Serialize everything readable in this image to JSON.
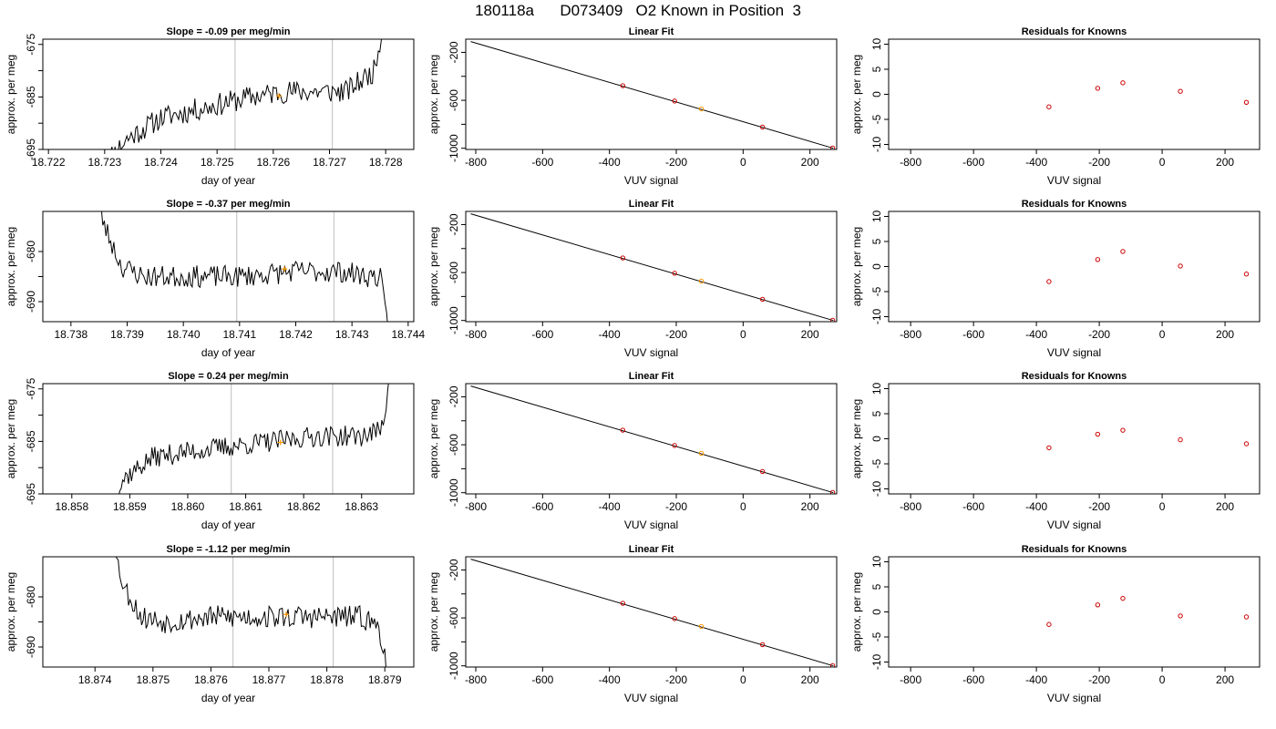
{
  "page": {
    "title": "180118a      D073409   O2 Known in Position  3"
  },
  "chart_data": [
    {
      "type": "line",
      "role": "timeseries",
      "title": "Slope =  -0.09  per meg/min",
      "xlabel": "day of year",
      "ylabel": "approx. per meg",
      "xlim": [
        18.7219,
        18.7285
      ],
      "ylim": [
        -695,
        -674
      ],
      "xticks": [
        18.722,
        18.723,
        18.724,
        18.725,
        18.726,
        18.727,
        18.728
      ],
      "xtick_labels": [
        "18.722",
        "18.723",
        "18.724",
        "18.725",
        "18.726",
        "18.727",
        "18.728"
      ],
      "yticks": [
        -675,
        -685,
        -695
      ],
      "ytick_labels": [
        "-675",
        "-685",
        "-695"
      ],
      "yminor": [
        -680,
        -690
      ],
      "vlines": [
        18.72532,
        18.72705
      ],
      "trace": {
        "start": 18.723,
        "end": 18.728,
        "anchors": [
          [
            18.723,
            -697.5
          ],
          [
            18.7234,
            -693
          ],
          [
            18.724,
            -689
          ],
          [
            18.7248,
            -687
          ],
          [
            18.7256,
            -685
          ],
          [
            18.7262,
            -684
          ],
          [
            18.7268,
            -684
          ],
          [
            18.7273,
            -684
          ],
          [
            18.7278,
            -680
          ],
          [
            18.728,
            -668
          ]
        ],
        "noise": 2.2,
        "seed": 11
      },
      "marker": {
        "x": 18.7261,
        "y": -684.8,
        "color": "#ff9900"
      }
    },
    {
      "type": "scatter",
      "role": "fit",
      "title": "Linear Fit",
      "xlabel": "VUV signal",
      "ylabel": "approx. per meg",
      "xlim": [
        -830,
        280
      ],
      "ylim": [
        -1010,
        -90
      ],
      "xticks": [
        -800,
        -600,
        -400,
        -200,
        0,
        200
      ],
      "xtick_labels": [
        "-800",
        "-600",
        "-400",
        "-200",
        "0",
        "200"
      ],
      "yticks": [
        -200,
        -600,
        -1000
      ],
      "ytick_labels": [
        "-200",
        "-600",
        "-1000"
      ],
      "yminor": [
        -400,
        -800
      ],
      "fit_line": {
        "x1": -815,
        "y1": -110,
        "x2": 270,
        "y2": -1000
      },
      "points": [
        {
          "x": -360,
          "y": -478
        },
        {
          "x": -205,
          "y": -606
        },
        {
          "x": -125,
          "y": -671,
          "color": "#ff9900"
        },
        {
          "x": 58,
          "y": -823
        },
        {
          "x": 268,
          "y": -998
        }
      ]
    },
    {
      "type": "scatter",
      "role": "residuals",
      "title": "Residuals for Knowns",
      "xlabel": "VUV signal",
      "ylabel": "approx. per meg",
      "xlim": [
        -870,
        310
      ],
      "ylim": [
        -11,
        11
      ],
      "xticks": [
        -800,
        -600,
        -400,
        -200,
        0,
        200
      ],
      "xtick_labels": [
        "-800",
        "-600",
        "-400",
        "-200",
        "0",
        "200"
      ],
      "yticks": [
        -10,
        -5,
        0,
        5,
        10
      ],
      "ytick_labels": [
        "-10",
        "-5",
        "0",
        "5",
        "10"
      ],
      "points": [
        {
          "x": -360,
          "y": -2.5
        },
        {
          "x": -205,
          "y": 1.2
        },
        {
          "x": -125,
          "y": 2.3
        },
        {
          "x": 58,
          "y": 0.6
        },
        {
          "x": 268,
          "y": -1.6
        }
      ]
    },
    {
      "type": "line",
      "role": "timeseries",
      "title": "Slope =  -0.37  per meg/min",
      "xlabel": "day of year",
      "ylabel": "approx. per meg",
      "xlim": [
        18.7375,
        18.7441
      ],
      "ylim": [
        -694,
        -672
      ],
      "xticks": [
        18.738,
        18.739,
        18.74,
        18.741,
        18.742,
        18.743,
        18.744
      ],
      "xtick_labels": [
        "18.738",
        "18.739",
        "18.740",
        "18.741",
        "18.742",
        "18.743",
        "18.744"
      ],
      "yticks": [
        -680,
        -690
      ],
      "ytick_labels": [
        "-680",
        "-690"
      ],
      "yminor": [
        -685
      ],
      "vlines": [
        18.74095,
        18.74268
      ],
      "trace": {
        "start": 18.7384,
        "end": 18.7437,
        "anchors": [
          [
            18.7384,
            -667
          ],
          [
            18.7386,
            -675
          ],
          [
            18.7389,
            -683
          ],
          [
            18.7393,
            -685
          ],
          [
            18.74,
            -685
          ],
          [
            18.741,
            -685
          ],
          [
            18.742,
            -684
          ],
          [
            18.7428,
            -684
          ],
          [
            18.7433,
            -685
          ],
          [
            18.7435,
            -685
          ],
          [
            18.7437,
            -700
          ]
        ],
        "noise": 2.2,
        "seed": 23
      },
      "marker": {
        "x": 18.7418,
        "y": -683.5,
        "color": "#ff9900"
      }
    },
    {
      "type": "scatter",
      "role": "fit",
      "title": "Linear Fit",
      "xlabel": "VUV signal",
      "ylabel": "approx. per meg",
      "xlim": [
        -830,
        280
      ],
      "ylim": [
        -1010,
        -90
      ],
      "xticks": [
        -800,
        -600,
        -400,
        -200,
        0,
        200
      ],
      "xtick_labels": [
        "-800",
        "-600",
        "-400",
        "-200",
        "0",
        "200"
      ],
      "yticks": [
        -200,
        -600,
        -1000
      ],
      "ytick_labels": [
        "-200",
        "-600",
        "-1000"
      ],
      "yminor": [
        -400,
        -800
      ],
      "fit_line": {
        "x1": -815,
        "y1": -110,
        "x2": 270,
        "y2": -1000
      },
      "points": [
        {
          "x": -360,
          "y": -478
        },
        {
          "x": -205,
          "y": -606
        },
        {
          "x": -125,
          "y": -671,
          "color": "#ff9900"
        },
        {
          "x": 58,
          "y": -823
        },
        {
          "x": 268,
          "y": -998
        }
      ]
    },
    {
      "type": "scatter",
      "role": "residuals",
      "title": "Residuals for Knowns",
      "xlabel": "VUV signal",
      "ylabel": "approx. per meg",
      "xlim": [
        -870,
        310
      ],
      "ylim": [
        -11,
        11
      ],
      "xticks": [
        -800,
        -600,
        -400,
        -200,
        0,
        200
      ],
      "xtick_labels": [
        "-800",
        "-600",
        "-400",
        "-200",
        "0",
        "200"
      ],
      "yticks": [
        -10,
        -5,
        0,
        5,
        10
      ],
      "ytick_labels": [
        "-10",
        "-5",
        "0",
        "5",
        "10"
      ],
      "points": [
        {
          "x": -360,
          "y": -3.0
        },
        {
          "x": -205,
          "y": 1.4
        },
        {
          "x": -125,
          "y": 3.0
        },
        {
          "x": 58,
          "y": 0.1
        },
        {
          "x": 268,
          "y": -1.5
        }
      ]
    },
    {
      "type": "line",
      "role": "timeseries",
      "title": "Slope =  0.24  per meg/min",
      "xlabel": "day of year",
      "ylabel": "approx. per meg",
      "xlim": [
        18.8575,
        18.8639
      ],
      "ylim": [
        -695,
        -674
      ],
      "xticks": [
        18.858,
        18.859,
        18.86,
        18.861,
        18.862,
        18.863
      ],
      "xtick_labels": [
        "18.858",
        "18.859",
        "18.860",
        "18.861",
        "18.862",
        "18.863"
      ],
      "yticks": [
        -675,
        -685,
        -695
      ],
      "ytick_labels": [
        "-675",
        "-685",
        "-695"
      ],
      "yminor": [
        -680,
        -690
      ],
      "vlines": [
        18.86075,
        18.8625
      ],
      "trace": {
        "start": 18.8587,
        "end": 18.8635,
        "anchors": [
          [
            18.8587,
            -696.5
          ],
          [
            18.8589,
            -692
          ],
          [
            18.8594,
            -688
          ],
          [
            18.86,
            -687
          ],
          [
            18.8607,
            -686
          ],
          [
            18.8615,
            -685
          ],
          [
            18.8622,
            -684
          ],
          [
            18.863,
            -684
          ],
          [
            18.8633,
            -683
          ],
          [
            18.8634,
            -680
          ],
          [
            18.8635,
            -670
          ]
        ],
        "noise": 2.0,
        "seed": 37
      },
      "marker": {
        "x": 18.8616,
        "y": -685.2,
        "color": "#ff9900"
      }
    },
    {
      "type": "scatter",
      "role": "fit",
      "title": "Linear Fit",
      "xlabel": "VUV signal",
      "ylabel": "approx. per meg",
      "xlim": [
        -830,
        280
      ],
      "ylim": [
        -1010,
        -90
      ],
      "xticks": [
        -800,
        -600,
        -400,
        -200,
        0,
        200
      ],
      "xtick_labels": [
        "-800",
        "-600",
        "-400",
        "-200",
        "0",
        "200"
      ],
      "yticks": [
        -200,
        -600,
        -1000
      ],
      "ytick_labels": [
        "-200",
        "-600",
        "-1000"
      ],
      "yminor": [
        -400,
        -800
      ],
      "fit_line": {
        "x1": -815,
        "y1": -110,
        "x2": 270,
        "y2": -1000
      },
      "points": [
        {
          "x": -360,
          "y": -478
        },
        {
          "x": -205,
          "y": -606
        },
        {
          "x": -125,
          "y": -671,
          "color": "#ff9900"
        },
        {
          "x": 58,
          "y": -823
        },
        {
          "x": 268,
          "y": -998
        }
      ]
    },
    {
      "type": "scatter",
      "role": "residuals",
      "title": "Residuals for Knowns",
      "xlabel": "VUV signal",
      "ylabel": "approx. per meg",
      "xlim": [
        -870,
        310
      ],
      "ylim": [
        -11,
        11
      ],
      "xticks": [
        -800,
        -600,
        -400,
        -200,
        0,
        200
      ],
      "xtick_labels": [
        "-800",
        "-600",
        "-400",
        "-200",
        "0",
        "200"
      ],
      "yticks": [
        -10,
        -5,
        0,
        5,
        10
      ],
      "ytick_labels": [
        "-10",
        "-5",
        "0",
        "5",
        "10"
      ],
      "points": [
        {
          "x": -360,
          "y": -1.8
        },
        {
          "x": -205,
          "y": 0.9
        },
        {
          "x": -125,
          "y": 1.7
        },
        {
          "x": 58,
          "y": -0.2
        },
        {
          "x": 268,
          "y": -1.0
        }
      ]
    },
    {
      "type": "line",
      "role": "timeseries",
      "title": "Slope =  -1.12  per meg/min",
      "xlabel": "day of year",
      "ylabel": "approx. per meg",
      "xlim": [
        18.8731,
        18.8795
      ],
      "ylim": [
        -694,
        -672
      ],
      "xticks": [
        18.874,
        18.875,
        18.876,
        18.877,
        18.878,
        18.879
      ],
      "xtick_labels": [
        "18.874",
        "18.875",
        "18.876",
        "18.877",
        "18.878",
        "18.879"
      ],
      "yticks": [
        -680,
        -690
      ],
      "ytick_labels": [
        "-680",
        "-690"
      ],
      "yminor": [
        -685
      ],
      "vlines": [
        18.87638,
        18.87811
      ],
      "trace": {
        "start": 18.8743,
        "end": 18.8791,
        "anchors": [
          [
            18.8743,
            -669
          ],
          [
            18.8745,
            -678
          ],
          [
            18.8748,
            -684
          ],
          [
            18.8752,
            -685
          ],
          [
            18.876,
            -684
          ],
          [
            18.877,
            -684
          ],
          [
            18.878,
            -684
          ],
          [
            18.8786,
            -684
          ],
          [
            18.8789,
            -686
          ],
          [
            18.8791,
            -697
          ]
        ],
        "noise": 2.3,
        "seed": 53
      },
      "marker": {
        "x": 18.8773,
        "y": -683.5,
        "color": "#ff9900"
      }
    },
    {
      "type": "scatter",
      "role": "fit",
      "title": "Linear Fit",
      "xlabel": "VUV signal",
      "ylabel": "approx. per meg",
      "xlim": [
        -830,
        280
      ],
      "ylim": [
        -1010,
        -90
      ],
      "xticks": [
        -800,
        -600,
        -400,
        -200,
        0,
        200
      ],
      "xtick_labels": [
        "-800",
        "-600",
        "-400",
        "-200",
        "0",
        "200"
      ],
      "yticks": [
        -200,
        -600,
        -1000
      ],
      "ytick_labels": [
        "-200",
        "-600",
        "-1000"
      ],
      "yminor": [
        -400,
        -800
      ],
      "fit_line": {
        "x1": -815,
        "y1": -110,
        "x2": 270,
        "y2": -1000
      },
      "points": [
        {
          "x": -360,
          "y": -478
        },
        {
          "x": -205,
          "y": -606
        },
        {
          "x": -125,
          "y": -671,
          "color": "#ff9900"
        },
        {
          "x": 58,
          "y": -823
        },
        {
          "x": 268,
          "y": -998
        }
      ]
    },
    {
      "type": "scatter",
      "role": "residuals",
      "title": "Residuals for Knowns",
      "xlabel": "VUV signal",
      "ylabel": "approx. per meg",
      "xlim": [
        -870,
        310
      ],
      "ylim": [
        -11,
        11
      ],
      "xticks": [
        -800,
        -600,
        -400,
        -200,
        0,
        200
      ],
      "xtick_labels": [
        "-800",
        "-600",
        "-400",
        "-200",
        "0",
        "200"
      ],
      "yticks": [
        -10,
        -5,
        0,
        5,
        10
      ],
      "ytick_labels": [
        "-10",
        "-5",
        "0",
        "5",
        "10"
      ],
      "points": [
        {
          "x": -360,
          "y": -2.5
        },
        {
          "x": -205,
          "y": 1.4
        },
        {
          "x": -125,
          "y": 2.7
        },
        {
          "x": 58,
          "y": -0.8
        },
        {
          "x": 268,
          "y": -1.0
        }
      ]
    }
  ],
  "colors": {
    "trace": "#000000",
    "point": "#cc0000",
    "highlight": "#ff9900",
    "vline": "#c8c8c8"
  }
}
